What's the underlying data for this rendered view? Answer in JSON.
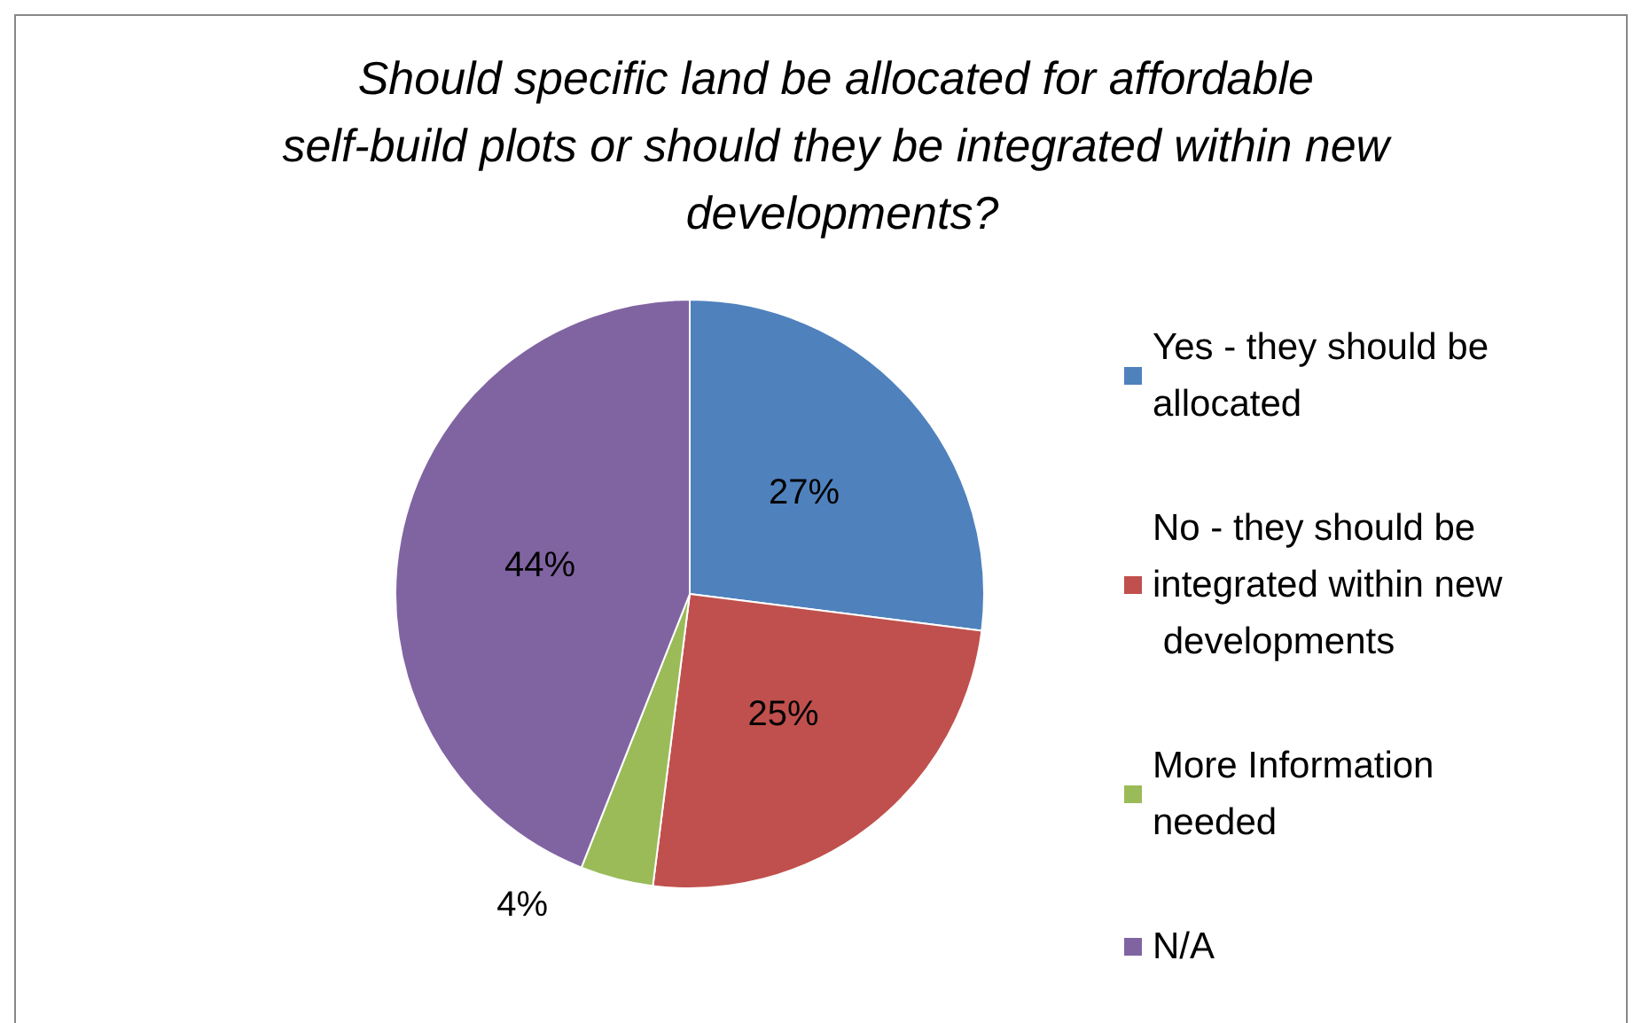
{
  "chart_data": {
    "type": "pie",
    "title": "Should specific land be allocated for affordable self-build plots or should they be integrated within new developments?",
    "categories": [
      "Yes - they should be allocated",
      "No - they should be integrated within new developments",
      "More Information needed",
      "N/A"
    ],
    "values": [
      27,
      25,
      4,
      44
    ],
    "colors": [
      "#4f81bd",
      "#c0504d",
      "#9bbb59",
      "#8064a2"
    ],
    "value_labels": [
      "27%",
      "25%",
      "4%",
      "44%"
    ],
    "legend": "right"
  }
}
